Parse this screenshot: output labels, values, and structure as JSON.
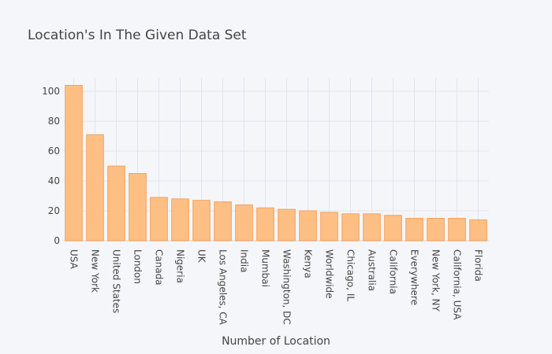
{
  "chart_data": {
    "type": "bar",
    "title": "Location's In The Given Data Set",
    "xlabel": "Number of Location",
    "ylabel": "",
    "categories": [
      "USA",
      "New York",
      "United States",
      "London",
      "Canada",
      "Nigeria",
      "UK",
      "Los Angeles, CA",
      "India",
      "Mumbai",
      "Washington, DC",
      "Kenya",
      "Worldwide",
      "Chicago, IL",
      "Australia",
      "California",
      "Everywhere",
      "New York, NY",
      "California, USA",
      "Florida"
    ],
    "values": [
      104,
      71,
      50,
      45,
      29,
      28,
      27,
      26,
      24,
      22,
      21,
      20,
      19,
      18,
      18,
      17,
      15,
      15,
      15,
      14
    ],
    "ylim": [
      0,
      109
    ],
    "yticks": [
      0,
      20,
      40,
      60,
      80,
      100
    ],
    "grid": true,
    "bar_color": "#fdbf84",
    "bar_edge_color": "#f4a25c"
  }
}
